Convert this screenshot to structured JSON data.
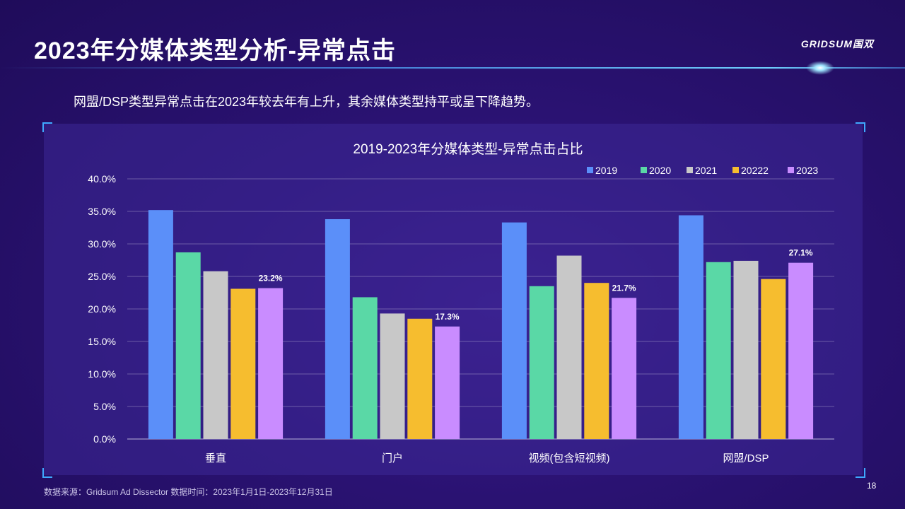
{
  "header": {
    "title": "2023年分媒体类型分析-异常点击",
    "logo_text": "GRIDSUM国双"
  },
  "subtitle": "网盟/DSP类型异常点击在2023年较去年有上升，其余媒体类型持平或呈下降趋势。",
  "footer": {
    "source": "数据来源：Gridsum Ad Dissector 数据时间：2023年1月1日-2023年12月31日",
    "page_number": "18"
  },
  "colors": {
    "2019": "#5b8ff9",
    "2020": "#5ad8a6",
    "2021": "#c8c8c8",
    "20222": "#f6bd2f",
    "2023": "#c98cff"
  },
  "chart_data": {
    "type": "bar",
    "title": "2019-2023年分媒体类型-异常点击占比",
    "categories": [
      "垂直",
      "门户",
      "视频(包含短视频)",
      "网盟/DSP"
    ],
    "series": [
      {
        "name": "2019",
        "values": [
          35.2,
          33.8,
          33.3,
          34.4
        ]
      },
      {
        "name": "2020",
        "values": [
          28.7,
          21.8,
          23.5,
          27.2
        ]
      },
      {
        "name": "2021",
        "values": [
          25.8,
          19.3,
          28.2,
          27.4
        ]
      },
      {
        "name": "20222",
        "values": [
          23.1,
          18.5,
          24.0,
          24.6
        ]
      },
      {
        "name": "2023",
        "values": [
          23.2,
          17.3,
          21.7,
          27.1
        ]
      }
    ],
    "data_labels": [
      {
        "series": "2023",
        "category": "垂直",
        "text": "23.2%"
      },
      {
        "series": "2023",
        "category": "门户",
        "text": "17.3%"
      },
      {
        "series": "2023",
        "category": "视频(包含短视频)",
        "text": "21.7%"
      },
      {
        "series": "2023",
        "category": "网盟/DSP",
        "text": "27.1%"
      }
    ],
    "yticks": [
      "0.0%",
      "5.0%",
      "10.0%",
      "15.0%",
      "20.0%",
      "25.0%",
      "30.0%",
      "35.0%",
      "40.0%"
    ],
    "ylim": [
      0,
      40
    ],
    "grid": true,
    "legend_position": "top-right"
  }
}
